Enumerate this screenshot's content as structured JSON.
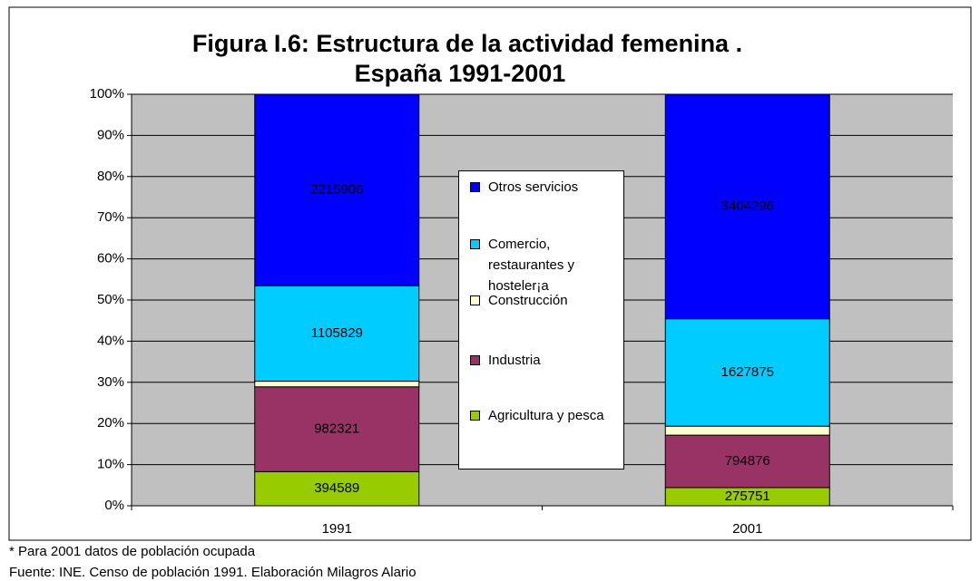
{
  "chart_data": {
    "type": "stacked_percent_bar",
    "title": "Figura I.6: Estructura de la actividad femenina .",
    "subtitle": "España  1991-2001",
    "categories": [
      "1991",
      "2001"
    ],
    "series": [
      {
        "name": "Agricultura y pesca",
        "color": "#99cc00",
        "values": [
          394589,
          275751
        ]
      },
      {
        "name": "Industria",
        "color": "#993366",
        "values": [
          982321,
          794876
        ]
      },
      {
        "name": "Construcción",
        "color": "#ffffcc",
        "values": [
          65000,
          137000
        ],
        "show_labels": false
      },
      {
        "name": "Comercio, restaurantes y hosteler¡a",
        "color": "#00ccff",
        "values": [
          1105829,
          1627875
        ]
      },
      {
        "name": "Otros servicios",
        "color": "#0000ff",
        "values": [
          2215906,
          3404296
        ]
      }
    ],
    "ylim": [
      0,
      100
    ],
    "yticks": [
      {
        "value": 0,
        "label": "0%"
      },
      {
        "value": 10,
        "label": "10%"
      },
      {
        "value": 20,
        "label": "20%"
      },
      {
        "value": 30,
        "label": "30%"
      },
      {
        "value": 40,
        "label": "40%"
      },
      {
        "value": 50,
        "label": "50%"
      },
      {
        "value": 60,
        "label": "60%"
      },
      {
        "value": 70,
        "label": "70%"
      },
      {
        "value": 80,
        "label": "80%"
      },
      {
        "value": 90,
        "label": "90%"
      },
      {
        "value": 100,
        "label": "100%"
      }
    ],
    "grid": true,
    "notes": [
      "* Para 2001 datos de población ocupada",
      "Fuente: INE. Censo de población 1991. Elaboración Milagros Alario"
    ]
  }
}
